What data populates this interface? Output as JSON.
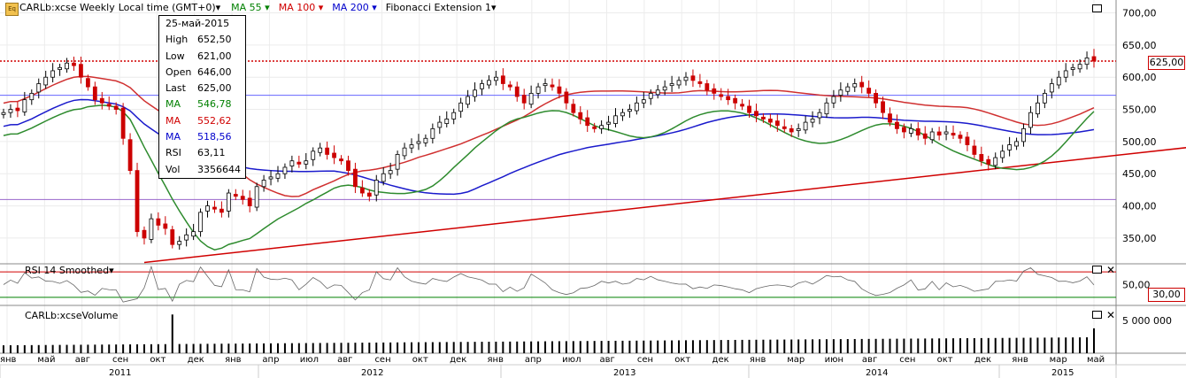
{
  "header": {
    "symbol_timeframe": "CARLb:xcse Weekly",
    "timezone": "Local time (GMT+0)",
    "indicators": [
      {
        "label": "MA 55",
        "color": "#008000"
      },
      {
        "label": "MA 100",
        "color": "#d00000"
      },
      {
        "label": "MA 200",
        "color": "#0000cc"
      },
      {
        "label": "Fibonacci Extension 1",
        "color": "#000000"
      }
    ]
  },
  "info_box": {
    "date": "25-май-2015",
    "rows": [
      {
        "k": "High",
        "v": "652,50",
        "color": "#000000"
      },
      {
        "k": "Low",
        "v": "621,00",
        "color": "#000000"
      },
      {
        "k": "Open",
        "v": "646,00",
        "color": "#000000"
      },
      {
        "k": "Last",
        "v": "625,00",
        "color": "#000000"
      },
      {
        "k": "MA",
        "v": "546,78",
        "color": "#008000"
      },
      {
        "k": "MA",
        "v": "552,62",
        "color": "#d00000"
      },
      {
        "k": "MA",
        "v": "518,56",
        "color": "#0000cc"
      },
      {
        "k": "RSI",
        "v": "63,11",
        "color": "#000000"
      },
      {
        "k": "Vol",
        "v": "3356644",
        "color": "#000000"
      }
    ]
  },
  "last_price_label": "625,00",
  "rsi_panel": {
    "title": "RSI 14 Smoothed",
    "level_label": "30,00",
    "tick_label": "50,00"
  },
  "volume_panel": {
    "title": "CARLb:xcseVolume",
    "tick_label": "5 000 000"
  },
  "chart_data": {
    "type": "candlestick",
    "price_axis": {
      "ylim": [
        310,
        720
      ],
      "ticks": [
        "350,00",
        "400,00",
        "450,00",
        "500,00",
        "550,00",
        "600,00",
        "650,00",
        "700,00"
      ],
      "tick_values": [
        350,
        400,
        450,
        500,
        550,
        600,
        650,
        700
      ]
    },
    "months": [
      "янв",
      "май",
      "авг",
      "сен",
      "окт",
      "дек",
      "янв",
      "апр",
      "июл",
      "авг",
      "сен",
      "окт",
      "дек",
      "янв",
      "апр",
      "июл",
      "авг",
      "сен",
      "окт",
      "дек",
      "янв",
      "мар",
      "июн",
      "авг",
      "сен",
      "окт",
      "дек",
      "янв",
      "мар",
      "май"
    ],
    "years": [
      "2011",
      "2012",
      "2013",
      "2014",
      "2015"
    ],
    "closes": [
      545,
      550,
      548,
      565,
      575,
      590,
      600,
      610,
      615,
      622,
      618,
      600,
      585,
      565,
      560,
      555,
      550,
      505,
      455,
      360,
      350,
      380,
      370,
      365,
      340,
      345,
      355,
      360,
      390,
      400,
      395,
      390,
      420,
      415,
      410,
      400,
      430,
      440,
      445,
      450,
      460,
      470,
      465,
      470,
      485,
      490,
      480,
      475,
      470,
      455,
      430,
      420,
      415,
      440,
      450,
      455,
      480,
      490,
      495,
      500,
      505,
      520,
      530,
      535,
      545,
      560,
      570,
      580,
      590,
      595,
      600,
      590,
      585,
      570,
      560,
      575,
      585,
      590,
      585,
      575,
      560,
      545,
      535,
      525,
      520,
      525,
      530,
      540,
      545,
      550,
      560,
      565,
      575,
      580,
      585,
      590,
      595,
      600,
      595,
      590,
      580,
      575,
      570,
      565,
      560,
      555,
      545,
      540,
      535,
      530,
      525,
      520,
      515,
      520,
      530,
      535,
      545,
      560,
      570,
      580,
      585,
      590,
      585,
      575,
      560,
      545,
      530,
      520,
      515,
      520,
      510,
      505,
      515,
      510,
      515,
      510,
      505,
      495,
      480,
      470,
      465,
      475,
      485,
      495,
      500,
      520,
      545,
      560,
      575,
      590,
      600,
      610,
      615,
      620,
      630,
      625
    ],
    "ma55_last": 546.78,
    "ma100_last": 552.62,
    "ma200_last": 518.56,
    "horizontal_levels": [
      {
        "value": 625,
        "style": "dotted",
        "color": "#d00000"
      },
      {
        "value": 572,
        "style": "solid",
        "color": "#6666ff"
      },
      {
        "value": 410,
        "style": "solid",
        "color": "#9966cc"
      }
    ],
    "trendline": {
      "from": {
        "index": 20,
        "value": 312
      },
      "to": {
        "index": 200,
        "value": 532
      },
      "color": "#d00000"
    },
    "rsi_levels": [
      70,
      30
    ],
    "last_rsi": 63.11,
    "last_volume": 3356644,
    "colors": {
      "up": "#000000",
      "down": "#cc0000",
      "ma55": "#2e8b2e",
      "ma100": "#d03030",
      "ma200": "#1a1acc"
    }
  }
}
